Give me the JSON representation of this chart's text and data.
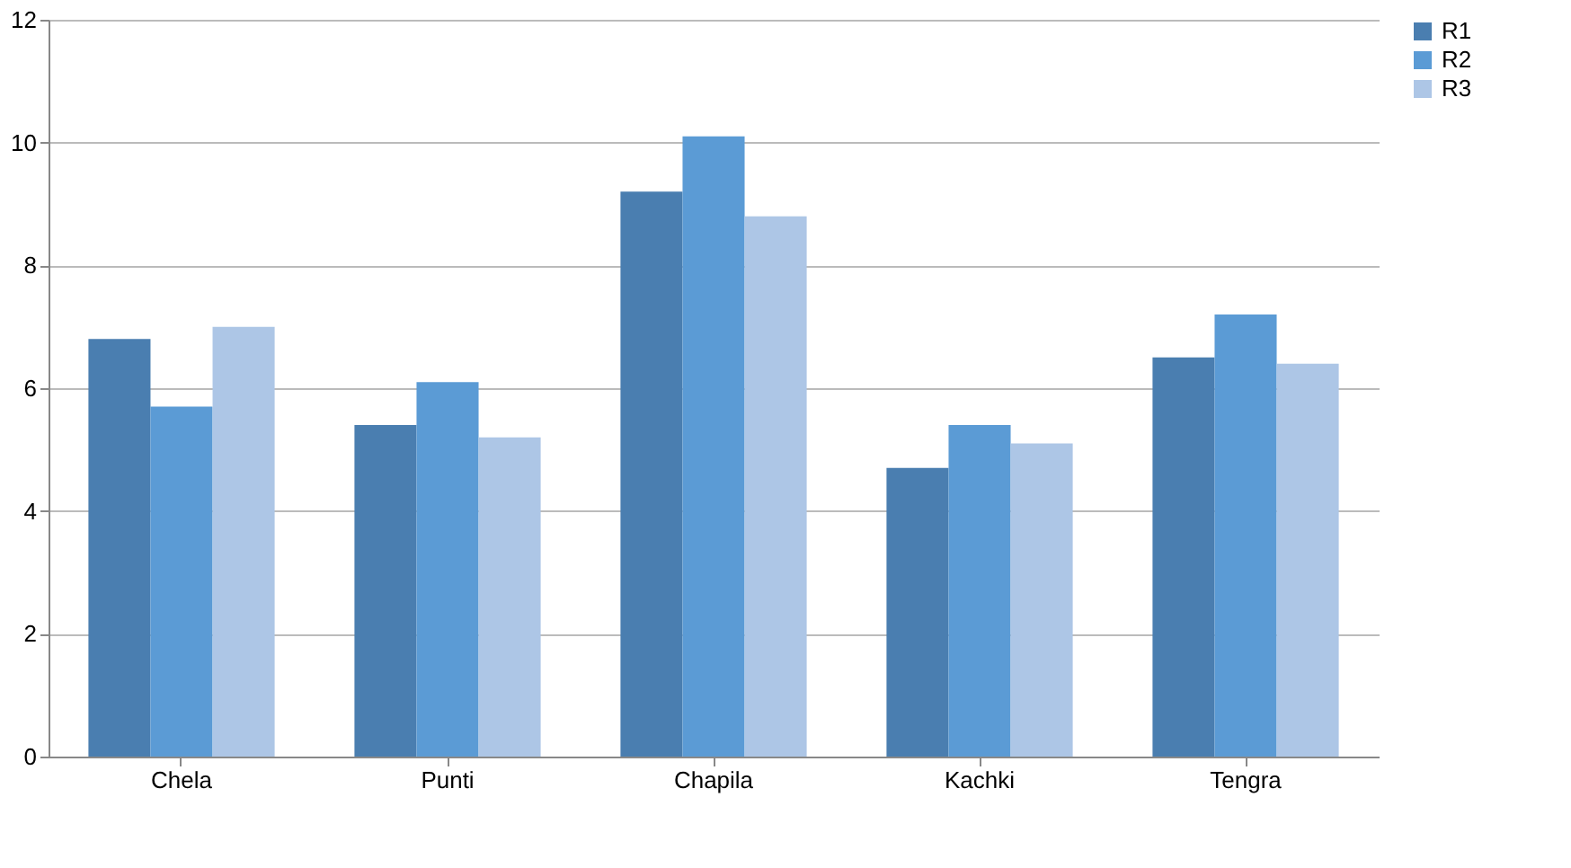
{
  "chart_data": {
    "type": "bar",
    "categories": [
      "Chela",
      "Punti",
      "Chapila",
      "Kachki",
      "Tengra"
    ],
    "series": [
      {
        "name": "R1",
        "color": "#4a7eb0",
        "values": [
          6.8,
          5.4,
          9.2,
          4.7,
          6.5
        ]
      },
      {
        "name": "R2",
        "color": "#5b9bd5",
        "values": [
          5.7,
          6.1,
          10.1,
          5.4,
          7.2
        ]
      },
      {
        "name": "R3",
        "color": "#adc6e6",
        "values": [
          7.0,
          5.2,
          8.8,
          5.1,
          6.4
        ]
      }
    ],
    "ylim": [
      0,
      12
    ],
    "yticks": [
      0,
      2,
      4,
      6,
      8,
      10,
      12
    ],
    "grid": "y",
    "legend": "right"
  }
}
